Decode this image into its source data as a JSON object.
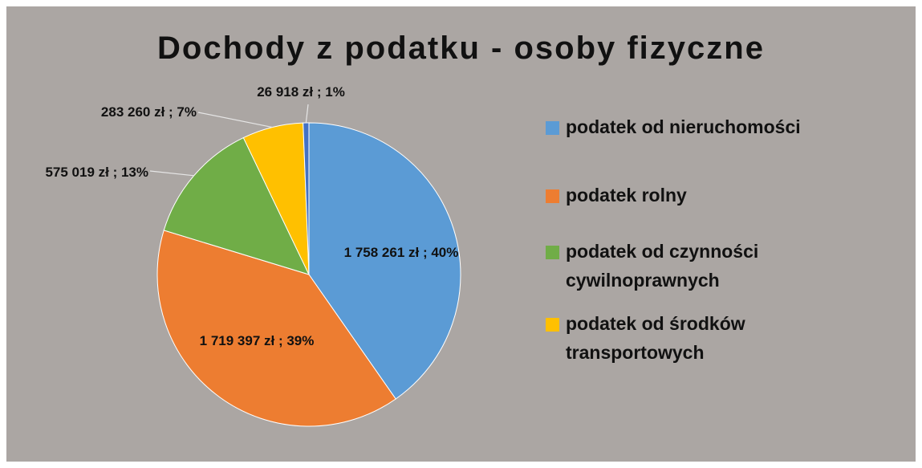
{
  "chart_data": {
    "type": "pie",
    "title": "Dochody z podatku - osoby fizyczne",
    "categories": [
      "podatek od nieruchomości",
      "podatek rolny",
      "podatek od czynności cywilnoprawnych",
      "podatek od środków transportowych",
      null
    ],
    "values": [
      1758261,
      1719397,
      575019,
      283260,
      26918
    ],
    "value_labels": [
      "1 758 261 zł ; 40%",
      "1 719 397 zł ; 39%",
      "575 019 zł ; 13%",
      "283 260 zł ; 7%",
      "26 918 zł ; 1%"
    ],
    "colors": [
      "#5b9bd5",
      "#ed7d31",
      "#70ad47",
      "#ffc000",
      "#4472c4"
    ],
    "legend": "right"
  }
}
